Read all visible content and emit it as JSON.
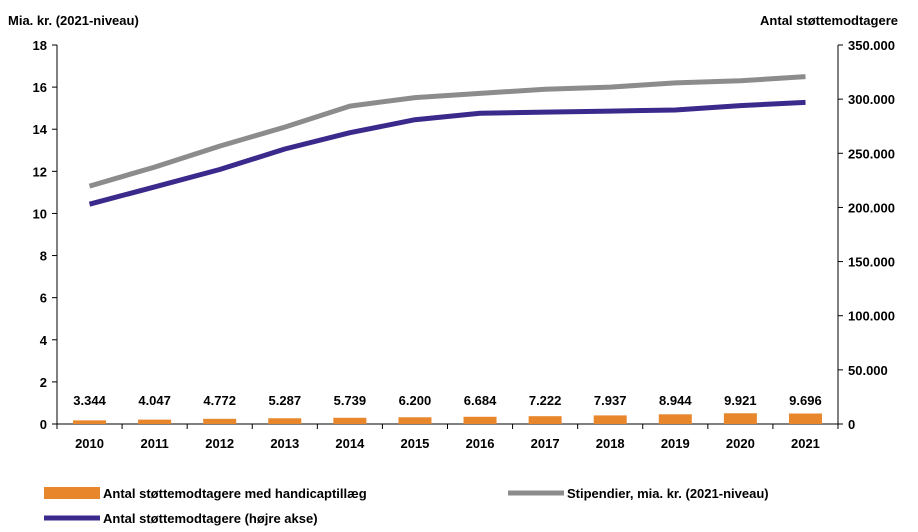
{
  "chart_data": {
    "type": "bar",
    "categories": [
      "2010",
      "2011",
      "2012",
      "2013",
      "2014",
      "2015",
      "2016",
      "2017",
      "2018",
      "2019",
      "2020",
      "2021"
    ],
    "left_axis": {
      "title": "Mia. kr. (2021-niveau)",
      "ylim": [
        0,
        18
      ],
      "ticks": [
        "0",
        "2",
        "4",
        "6",
        "8",
        "10",
        "12",
        "14",
        "16",
        "18"
      ]
    },
    "right_axis": {
      "title": "Antal støttemodtagere",
      "ylim": [
        0,
        350000
      ],
      "ticks": [
        "0",
        "50.000",
        "100.000",
        "150.000",
        "200.000",
        "250.000",
        "300.000",
        "350.000"
      ]
    },
    "series": [
      {
        "name": "Antal støttemodtagere med handicaptillæg",
        "kind": "bar",
        "axis": "right",
        "color": "#E8862B",
        "values": [
          3344,
          4047,
          4772,
          5287,
          5739,
          6200,
          6684,
          7222,
          7937,
          8944,
          9921,
          9696
        ],
        "labels": [
          "3.344",
          "4.047",
          "4.772",
          "5.287",
          "5.739",
          "6.200",
          "6.684",
          "7.222",
          "7.937",
          "8.944",
          "9.921",
          "9.696"
        ]
      },
      {
        "name": "Stipendier, mia. kr. (2021-niveau)",
        "kind": "line",
        "axis": "left",
        "color": "#8C8C8C",
        "values": [
          11.3,
          12.2,
          13.2,
          14.1,
          15.1,
          15.5,
          15.7,
          15.9,
          16.0,
          16.2,
          16.3,
          16.5
        ]
      },
      {
        "name": "Antal støttemodtagere (højre akse)",
        "kind": "line",
        "axis": "right",
        "color": "#3B2A8C",
        "values": [
          203000,
          219000,
          235000,
          254000,
          269000,
          281000,
          287000,
          288000,
          289000,
          290000,
          294000,
          297000
        ]
      }
    ],
    "legend_placement": "bottom",
    "grid": false
  }
}
